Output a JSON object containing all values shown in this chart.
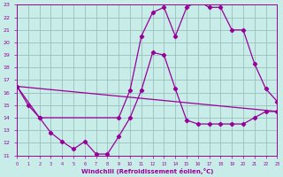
{
  "xlabel": "Windchill (Refroidissement éolien,°C)",
  "bg_color": "#c8ece8",
  "grid_color": "#9abfbc",
  "line_color": "#990099",
  "xlim": [
    0,
    23
  ],
  "ylim": [
    11,
    23
  ],
  "xticks": [
    0,
    1,
    2,
    3,
    4,
    5,
    6,
    7,
    8,
    9,
    10,
    11,
    12,
    13,
    14,
    15,
    16,
    17,
    18,
    19,
    20,
    21,
    22,
    23
  ],
  "yticks": [
    11,
    12,
    13,
    14,
    15,
    16,
    17,
    18,
    19,
    20,
    21,
    22,
    23
  ],
  "line1_x": [
    0,
    1,
    2,
    3,
    4,
    5,
    6,
    7,
    8,
    9,
    10,
    11,
    12,
    13,
    14,
    15,
    16,
    17,
    18,
    19,
    20,
    21,
    22,
    23
  ],
  "line1_y": [
    16.5,
    15.0,
    14.0,
    12.8,
    12.1,
    11.5,
    12.1,
    11.1,
    11.1,
    12.5,
    14.0,
    16.2,
    19.2,
    19.0,
    16.3,
    13.8,
    13.5,
    13.5,
    13.5,
    13.5,
    13.5,
    14.0,
    14.5,
    14.5
  ],
  "line2_x": [
    0,
    2,
    9,
    10,
    11,
    12,
    13,
    14,
    15,
    16,
    17,
    18,
    19,
    20,
    21,
    22,
    23
  ],
  "line2_y": [
    16.5,
    14.0,
    14.0,
    16.2,
    20.5,
    22.4,
    22.8,
    20.5,
    22.8,
    23.3,
    22.8,
    22.8,
    21.0,
    21.0,
    18.3,
    16.3,
    15.3
  ],
  "line3_x": [
    0,
    23
  ],
  "line3_y": [
    16.5,
    14.5
  ]
}
